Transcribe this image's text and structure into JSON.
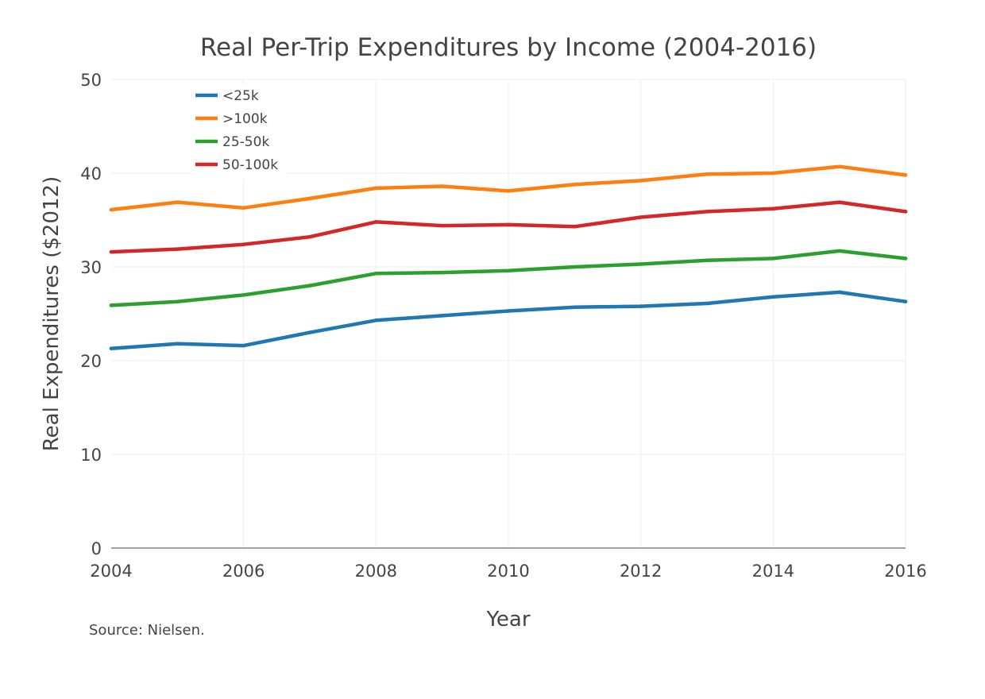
{
  "chart_data": {
    "type": "line",
    "title": "Real Per-Trip Expenditures by Income (2004-2016)",
    "xlabel": "Year",
    "ylabel": "Real Expenditures ($2012)",
    "source": "Source: Nielsen.",
    "x": [
      2004,
      2005,
      2006,
      2007,
      2008,
      2009,
      2010,
      2011,
      2012,
      2013,
      2014,
      2015,
      2016
    ],
    "xlim": [
      2004,
      2016
    ],
    "ylim": [
      0,
      50
    ],
    "xticks": [
      "2004",
      "2006",
      "2008",
      "2010",
      "2012",
      "2014",
      "2016"
    ],
    "yticks": [
      "0",
      "10",
      "20",
      "30",
      "40",
      "50"
    ],
    "grid": true,
    "legend_position": "top-left",
    "series": [
      {
        "name": "<25k",
        "color": "#1f77b4",
        "values": [
          21.3,
          21.8,
          21.6,
          23.0,
          24.3,
          24.8,
          25.3,
          25.7,
          25.8,
          26.1,
          26.8,
          27.3,
          26.3
        ]
      },
      {
        "name": ">100k",
        "color": "#ff7f0e",
        "values": [
          36.1,
          36.9,
          36.3,
          37.3,
          38.4,
          38.6,
          38.1,
          38.8,
          39.2,
          39.9,
          40.0,
          40.7,
          39.8
        ]
      },
      {
        "name": "25-50k",
        "color": "#2ca02c",
        "values": [
          25.9,
          26.3,
          27.0,
          28.0,
          29.3,
          29.4,
          29.6,
          30.0,
          30.3,
          30.7,
          30.9,
          31.7,
          30.9
        ]
      },
      {
        "name": "50-100k",
        "color": "#d62728",
        "values": [
          31.6,
          31.9,
          32.4,
          33.2,
          34.8,
          34.4,
          34.5,
          34.3,
          35.3,
          35.9,
          36.2,
          36.9,
          35.9
        ]
      }
    ]
  }
}
